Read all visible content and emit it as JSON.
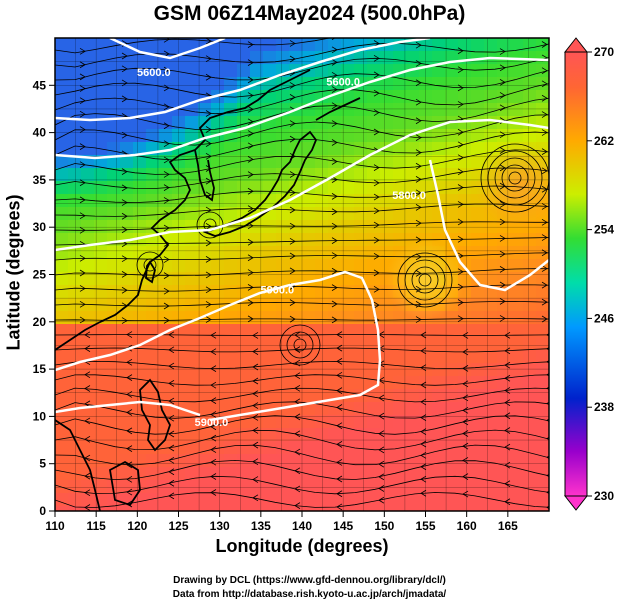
{
  "title": "GSM 06Z14May2024 (500.0hPa)",
  "xlabel": "Longitude (degrees)",
  "ylabel": "Latitude  (degrees)",
  "credits": {
    "line1": "Drawing by DCL (https://www.gfd-dennou.org/library/dcl/)",
    "line2": "Data from http://database.rish.kyoto-u.ac.jp/arch/jmadata/"
  },
  "chart_data": {
    "type": "heatmap",
    "xlim": [
      110,
      170
    ],
    "ylim": [
      0,
      50
    ],
    "x_ticks": [
      110,
      115,
      120,
      125,
      130,
      135,
      140,
      145,
      150,
      155,
      160,
      165
    ],
    "y_ticks": [
      0,
      5,
      10,
      15,
      20,
      25,
      30,
      35,
      40,
      45
    ],
    "grid": true,
    "colorbar": {
      "ticks": [
        230,
        238,
        246,
        254,
        262,
        270
      ],
      "range": [
        230,
        270
      ],
      "colors": [
        "#ff33cc",
        "#7700cc",
        "#0022cc",
        "#0099ff",
        "#00ddcc",
        "#33dd33",
        "#ccee00",
        "#ffaa00",
        "#ff6633",
        "#ff5555"
      ]
    },
    "contour_labels": [
      {
        "text": "5900.0",
        "lon": 137,
        "lat": 23
      },
      {
        "text": "5900.0",
        "lon": 129,
        "lat": 9
      },
      {
        "text": "5600.0",
        "lon": 122,
        "lat": 46
      },
      {
        "text": "5600.0",
        "lon": 145,
        "lat": 45
      },
      {
        "text": "5800.0",
        "lon": 153,
        "lat": 33
      }
    ]
  }
}
